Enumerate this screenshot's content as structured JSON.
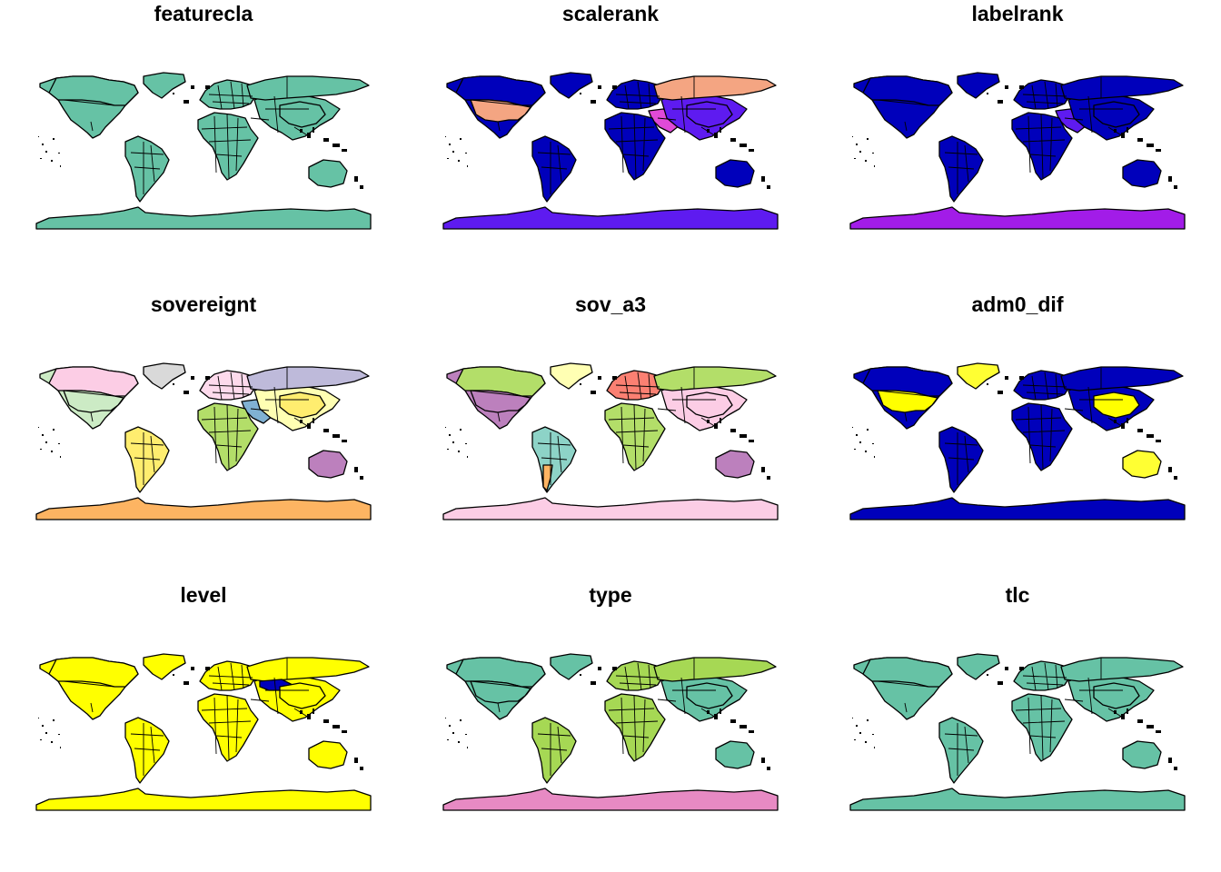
{
  "panels": [
    {
      "title": "featurecla",
      "colors": {
        "base": "#66C2A5",
        "na": "#66C2A5",
        "sa": "#66C2A5",
        "eu": "#66C2A5",
        "af": "#66C2A5",
        "as": "#66C2A5",
        "au": "#66C2A5",
        "an": "#66C2A5",
        "gl": "#66C2A5",
        "ca": "#66C2A5",
        "ru": "#66C2A5",
        "cn": "#66C2A5"
      }
    },
    {
      "title": "scalerank",
      "colors": {
        "base": "#0000BB",
        "na": "#0000BB",
        "sa": "#0000BB",
        "eu": "#0000BB",
        "af": "#0000BB",
        "as": "#5E1BF0",
        "au": "#0000BB",
        "an": "#5E1BF0",
        "gl": "#0000BB",
        "ca": "#0000BB",
        "ru": "#F4A582",
        "cn": "#5E1BF0",
        "us": "#F4A582",
        "me": "#E04AD8"
      }
    },
    {
      "title": "labelrank",
      "colors": {
        "base": "#0000BB",
        "na": "#0000BB",
        "sa": "#0000BB",
        "eu": "#0000BB",
        "af": "#0000BB",
        "as": "#0000BB",
        "au": "#0000BB",
        "an": "#A21CE8",
        "gl": "#0000BB",
        "ca": "#0000BB",
        "ru": "#0000BB",
        "cn": "#0000BB",
        "me": "#5E1BF0"
      }
    },
    {
      "title": "sovereignt",
      "colors": {
        "base": "#FBB4AE",
        "na": "#CCEBC5",
        "sa": "#FFED6F",
        "eu": "#FDDAEC",
        "af": "#B3DE69",
        "as": "#FFFFB3",
        "au": "#BC80BD",
        "an": "#FDB462",
        "gl": "#D9D9D9",
        "ca": "#FCCDE5",
        "ru": "#BEBADA",
        "cn": "#FFED6F",
        "us": "#CCEBC5",
        "me": "#80B1D3"
      }
    },
    {
      "title": "sov_a3",
      "colors": {
        "base": "#8DD3C7",
        "na": "#BC80BD",
        "sa": "#8DD3C7",
        "eu": "#FB8072",
        "af": "#B3DE69",
        "as": "#FCCDE5",
        "au": "#BC80BD",
        "an": "#FCCDE5",
        "gl": "#FFFFB3",
        "ca": "#B3DE69",
        "ru": "#B3DE69",
        "cn": "#FCCDE5",
        "us": "#BC80BD",
        "sa2": "#FDB462"
      }
    },
    {
      "title": "adm0_dif",
      "colors": {
        "base": "#0000BB",
        "na": "#0000BB",
        "sa": "#0000BB",
        "eu": "#0000BB",
        "af": "#0000BB",
        "as": "#0000BB",
        "au": "#FFFF33",
        "an": "#0000BB",
        "gl": "#FFFF33",
        "ca": "#0000BB",
        "ru": "#0000BB",
        "cn": "#FFFF00",
        "us": "#FFFF00"
      }
    },
    {
      "title": "level",
      "colors": {
        "base": "#FFFF00",
        "na": "#FFFF00",
        "sa": "#FFFF00",
        "eu": "#FFFF00",
        "af": "#FFFF00",
        "as": "#FFFF00",
        "au": "#FFFF00",
        "an": "#FFFF00",
        "gl": "#FFFF00",
        "ca": "#FFFF00",
        "ru": "#FFFF00",
        "cn": "#FFFF00",
        "kz": "#0000BB"
      }
    },
    {
      "title": "type",
      "colors": {
        "base": "#A6D854",
        "na": "#66C2A5",
        "sa": "#A6D854",
        "eu": "#A6D854",
        "af": "#A6D854",
        "as": "#66C2A5",
        "au": "#66C2A5",
        "an": "#E78AC3",
        "gl": "#66C2A5",
        "ca": "#66C2A5",
        "ru": "#A6D854",
        "cn": "#66C2A5",
        "us": "#66C2A5"
      }
    },
    {
      "title": "tlc",
      "colors": {
        "base": "#66C2A5",
        "na": "#66C2A5",
        "sa": "#66C2A5",
        "eu": "#66C2A5",
        "af": "#66C2A5",
        "as": "#66C2A5",
        "au": "#66C2A5",
        "an": "#66C2A5",
        "gl": "#66C2A5",
        "ca": "#66C2A5",
        "ru": "#66C2A5",
        "cn": "#66C2A5"
      }
    }
  ]
}
